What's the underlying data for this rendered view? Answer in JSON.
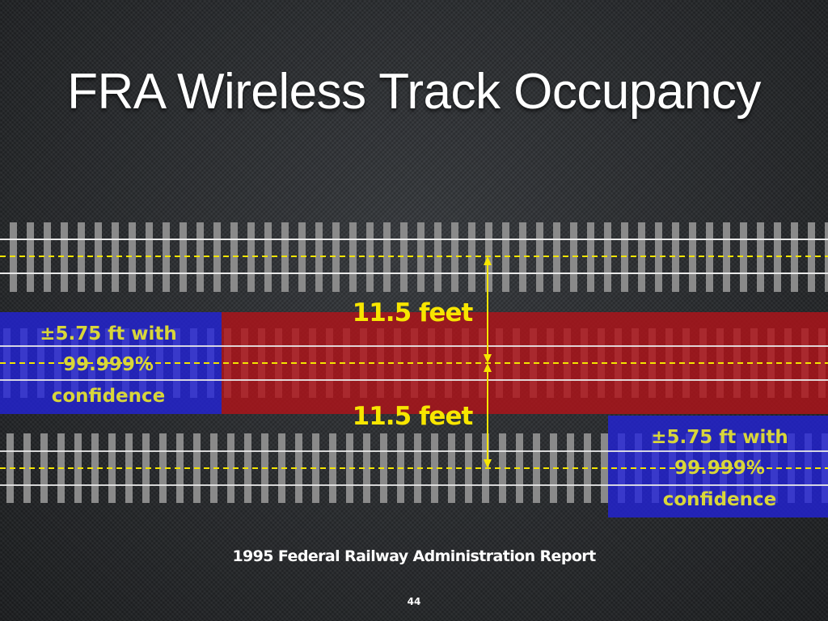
{
  "slide": {
    "title": "FRA Wireless Track Occupancy",
    "source_note": "1995 Federal Railway Administration Report",
    "page_number": "44"
  },
  "diagram": {
    "tracks": [
      "top",
      "middle",
      "bottom"
    ],
    "spacing_labels": [
      "11.5 feet",
      "11.5 feet"
    ],
    "confidence_labels": [
      {
        "line1": "±5.75 ft with",
        "line2": "99.999%",
        "line3": "confidence"
      },
      {
        "line1": "±5.75 ft with",
        "line2": "99.999%",
        "line3": "confidence"
      }
    ],
    "colors": {
      "rail": "#e8e8e8",
      "tie": "#8a8a8a",
      "centerline": "#f2e400",
      "spacing_label": "#f7e600",
      "confidence_label": "#d8d63a",
      "occupancy_zone": "#b0141a",
      "uncertainty_zone": "#2222dd",
      "measure_arrow": "#f7e600"
    }
  }
}
